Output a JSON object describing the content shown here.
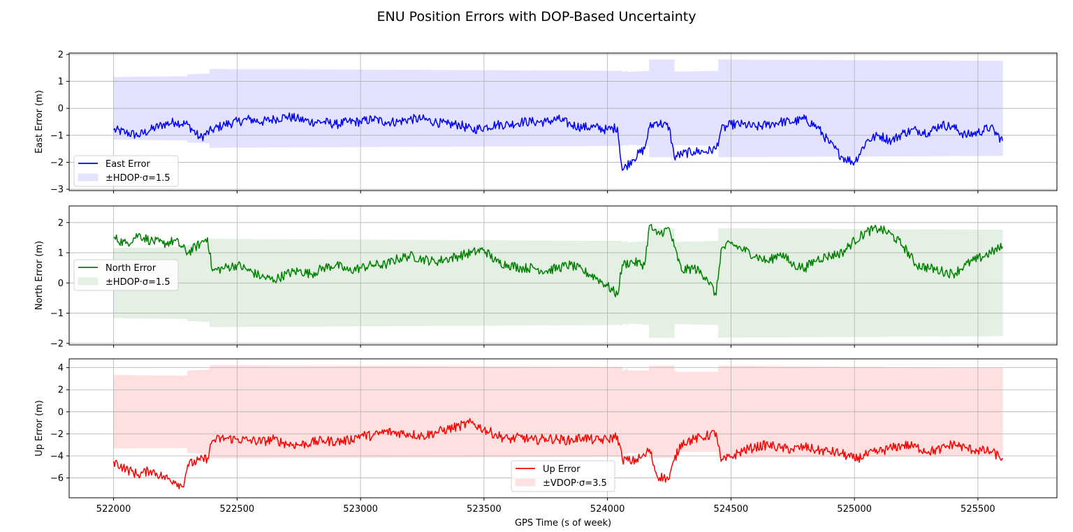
{
  "figure": {
    "title": "ENU Position Errors with DOP-Based Uncertainty",
    "xlabel": "GPS Time (s of week)"
  },
  "chart_data": [
    {
      "type": "line",
      "id": "east",
      "ylabel": "East Error (m)",
      "xlim": [
        521820,
        525820
      ],
      "ylim": [
        -3.05,
        2.05
      ],
      "xticks": [
        522000,
        522500,
        523000,
        523500,
        524000,
        524500,
        525000,
        525500
      ],
      "yticks": [
        -3,
        -2,
        -1,
        0,
        1,
        2
      ],
      "ytick_labels": [
        "−3",
        "−2",
        "−1",
        "0",
        "1",
        "2"
      ],
      "grid": true,
      "legend_position": "lower-left",
      "line_color": "#0000ff",
      "band_color": "#e3e3ff",
      "series": [
        {
          "name": "East Error",
          "x": [
            522000,
            522050,
            522100,
            522150,
            522200,
            522250,
            522300,
            522350,
            522400,
            522450,
            522500,
            522550,
            522600,
            522650,
            522700,
            522750,
            522800,
            522850,
            522900,
            522950,
            523000,
            523050,
            523100,
            523150,
            523200,
            523250,
            523300,
            523350,
            523400,
            523450,
            523500,
            523550,
            523600,
            523650,
            523700,
            523750,
            523800,
            523850,
            523900,
            523950,
            524000,
            524040,
            524060,
            524100,
            524150,
            524170,
            524200,
            524250,
            524270,
            524300,
            524350,
            524400,
            524440,
            524460,
            524500,
            524550,
            524600,
            524650,
            524700,
            524750,
            524800,
            524850,
            524900,
            524950,
            525000,
            525050,
            525100,
            525150,
            525200,
            525250,
            525300,
            525350,
            525400,
            525450,
            525500,
            525550,
            525600
          ],
          "y": [
            -0.8,
            -0.9,
            -1.0,
            -0.8,
            -0.6,
            -0.5,
            -0.6,
            -1.1,
            -0.8,
            -0.6,
            -0.5,
            -0.4,
            -0.5,
            -0.4,
            -0.3,
            -0.4,
            -0.5,
            -0.5,
            -0.6,
            -0.5,
            -0.5,
            -0.4,
            -0.5,
            -0.5,
            -0.4,
            -0.4,
            -0.5,
            -0.6,
            -0.6,
            -0.8,
            -0.7,
            -0.6,
            -0.6,
            -0.5,
            -0.5,
            -0.5,
            -0.4,
            -0.6,
            -0.7,
            -0.7,
            -0.8,
            -0.7,
            -2.3,
            -1.9,
            -1.5,
            -0.7,
            -0.5,
            -0.7,
            -1.8,
            -1.7,
            -1.6,
            -1.6,
            -1.5,
            -0.8,
            -0.6,
            -0.6,
            -0.7,
            -0.6,
            -0.5,
            -0.5,
            -0.4,
            -0.7,
            -1.3,
            -1.8,
            -2.0,
            -1.2,
            -1.0,
            -1.2,
            -0.9,
            -0.8,
            -0.9,
            -0.6,
            -0.7,
            -1.0,
            -0.9,
            -0.7,
            -1.2
          ]
        }
      ],
      "band": {
        "name": "±HDOP·σ=1.5",
        "x": [
          522000,
          522300,
          522300,
          522390,
          522390,
          524060,
          524060,
          524080,
          524080,
          524170,
          524170,
          524270,
          524270,
          524450,
          524450,
          525600
        ],
        "upper": [
          1.15,
          1.18,
          1.25,
          1.28,
          1.45,
          1.38,
          1.33,
          1.38,
          1.33,
          1.38,
          1.8,
          1.8,
          1.35,
          1.38,
          1.8,
          1.75
        ],
        "lower": [
          -1.15,
          -1.18,
          -1.25,
          -1.28,
          -1.45,
          -1.38,
          -1.33,
          -1.38,
          -1.33,
          -1.38,
          -1.8,
          -1.8,
          -1.35,
          -1.38,
          -1.8,
          -1.75
        ]
      }
    },
    {
      "type": "line",
      "id": "north",
      "ylabel": "North Error (m)",
      "xlim": [
        521820,
        525820
      ],
      "ylim": [
        -2.05,
        2.55
      ],
      "xticks": [
        522000,
        522500,
        523000,
        523500,
        524000,
        524500,
        525000,
        525500
      ],
      "yticks": [
        -2,
        -1,
        0,
        1,
        2
      ],
      "ytick_labels": [
        "−2",
        "−1",
        "0",
        "1",
        "2"
      ],
      "grid": true,
      "legend_position": "upper-left",
      "line_color": "#008000",
      "band_color": "#e3f0e3",
      "series": [
        {
          "name": "North Error",
          "x": [
            522000,
            522050,
            522100,
            522150,
            522200,
            522250,
            522300,
            522350,
            522380,
            522400,
            522450,
            522500,
            522550,
            522600,
            522650,
            522700,
            522750,
            522800,
            522850,
            522900,
            522950,
            523000,
            523050,
            523100,
            523150,
            523200,
            523250,
            523300,
            523350,
            523400,
            523450,
            523500,
            523550,
            523600,
            523650,
            523700,
            523750,
            523800,
            523850,
            523900,
            523950,
            524000,
            524040,
            524060,
            524100,
            524150,
            524170,
            524200,
            524250,
            524270,
            524300,
            524350,
            524400,
            524440,
            524460,
            524500,
            524550,
            524600,
            524650,
            524700,
            524750,
            524800,
            524850,
            524900,
            524950,
            525000,
            525050,
            525100,
            525150,
            525200,
            525250,
            525300,
            525350,
            525400,
            525450,
            525500,
            525550,
            525600
          ],
          "y": [
            1.5,
            1.3,
            1.6,
            1.4,
            1.3,
            1.4,
            1.0,
            1.3,
            1.5,
            0.4,
            0.5,
            0.6,
            0.4,
            0.2,
            0.1,
            0.3,
            0.4,
            0.3,
            0.5,
            0.6,
            0.4,
            0.5,
            0.6,
            0.6,
            0.8,
            0.9,
            0.8,
            0.7,
            0.8,
            0.9,
            1.0,
            1.1,
            0.7,
            0.6,
            0.5,
            0.5,
            0.4,
            0.5,
            0.6,
            0.4,
            0.2,
            -0.1,
            -0.4,
            0.6,
            0.7,
            0.6,
            1.9,
            1.6,
            1.8,
            1.2,
            0.4,
            0.5,
            0.2,
            -0.4,
            1.1,
            1.3,
            1.1,
            0.9,
            0.7,
            1.0,
            0.6,
            0.5,
            0.8,
            0.9,
            1.0,
            1.4,
            1.7,
            1.8,
            1.6,
            1.2,
            0.6,
            0.5,
            0.4,
            0.3,
            0.6,
            0.8,
            1.0,
            1.2
          ]
        }
      ],
      "band": {
        "name": "±HDOP·σ=1.5",
        "x": [
          522000,
          522300,
          522300,
          522390,
          522390,
          524060,
          524060,
          524080,
          524080,
          524170,
          524170,
          524270,
          524270,
          524450,
          524450,
          525600
        ],
        "upper": [
          1.15,
          1.18,
          1.25,
          1.28,
          1.45,
          1.38,
          1.33,
          1.38,
          1.33,
          1.38,
          1.8,
          1.8,
          1.35,
          1.38,
          1.8,
          1.75
        ],
        "lower": [
          -1.15,
          -1.18,
          -1.25,
          -1.28,
          -1.45,
          -1.38,
          -1.33,
          -1.38,
          -1.33,
          -1.38,
          -1.8,
          -1.8,
          -1.35,
          -1.38,
          -1.8,
          -1.75
        ]
      }
    },
    {
      "type": "line",
      "id": "up",
      "ylabel": "Up Error (m)",
      "xlim": [
        521820,
        525820
      ],
      "ylim": [
        -7.8,
        4.8
      ],
      "xticks": [
        522000,
        522500,
        523000,
        523500,
        524000,
        524500,
        525000,
        525500
      ],
      "xtick_labels": [
        "522000",
        "522500",
        "523000",
        "523500",
        "524000",
        "524500",
        "525000",
        "525500"
      ],
      "yticks": [
        -6,
        -4,
        -2,
        0,
        2,
        4
      ],
      "ytick_labels": [
        "−6",
        "−4",
        "−2",
        "0",
        "2",
        "4"
      ],
      "grid": true,
      "legend_position": "lower-center",
      "line_color": "#ff0000",
      "band_color": "#ffe0e0",
      "series": [
        {
          "name": "Up Error",
          "x": [
            522000,
            522050,
            522100,
            522150,
            522200,
            522250,
            522280,
            522300,
            522350,
            522380,
            522400,
            522450,
            522500,
            522550,
            522600,
            522650,
            522700,
            522750,
            522800,
            522850,
            522900,
            522950,
            523000,
            523050,
            523100,
            523150,
            523200,
            523250,
            523300,
            523350,
            523400,
            523450,
            523500,
            523550,
            523600,
            523650,
            523700,
            523750,
            523800,
            523850,
            523900,
            523950,
            524000,
            524040,
            524060,
            524100,
            524150,
            524170,
            524200,
            524250,
            524270,
            524300,
            524350,
            524400,
            524440,
            524460,
            524500,
            524550,
            524600,
            524650,
            524700,
            524750,
            524800,
            524850,
            524900,
            524950,
            525000,
            525050,
            525100,
            525150,
            525200,
            525250,
            525300,
            525350,
            525400,
            525450,
            525500,
            525550,
            525600
          ],
          "y": [
            -4.5,
            -5.2,
            -5.7,
            -5.3,
            -5.9,
            -6.3,
            -6.8,
            -4.8,
            -4.4,
            -4.2,
            -2.6,
            -2.4,
            -2.5,
            -2.6,
            -2.7,
            -2.5,
            -2.9,
            -3.0,
            -2.8,
            -2.6,
            -2.7,
            -2.6,
            -2.1,
            -2.2,
            -1.8,
            -1.9,
            -2.0,
            -2.2,
            -1.9,
            -1.6,
            -1.3,
            -1.0,
            -1.6,
            -2.1,
            -2.5,
            -2.3,
            -2.6,
            -2.4,
            -2.5,
            -2.6,
            -2.3,
            -2.6,
            -2.5,
            -2.2,
            -4.3,
            -4.5,
            -4.0,
            -3.4,
            -5.8,
            -6.1,
            -4.4,
            -2.8,
            -2.5,
            -2.2,
            -1.9,
            -4.5,
            -4.1,
            -3.5,
            -3.2,
            -3.0,
            -3.3,
            -3.4,
            -3.2,
            -3.5,
            -3.6,
            -3.8,
            -4.3,
            -3.9,
            -3.6,
            -3.3,
            -3.0,
            -3.2,
            -3.6,
            -3.4,
            -2.9,
            -3.3,
            -3.5,
            -3.6,
            -4.2
          ]
        }
      ],
      "band": {
        "name": "±VDOP·σ=3.5",
        "x": [
          522000,
          522300,
          522300,
          522390,
          522390,
          524060,
          524060,
          524080,
          524080,
          524170,
          524170,
          524270,
          524270,
          524450,
          524450,
          525600
        ],
        "upper": [
          3.3,
          3.25,
          3.7,
          3.8,
          4.2,
          4.05,
          3.65,
          3.9,
          3.7,
          3.7,
          4.15,
          4.15,
          3.6,
          3.6,
          4.15,
          3.95
        ],
        "lower": [
          -3.3,
          -3.25,
          -3.7,
          -3.8,
          -4.2,
          -4.05,
          -3.65,
          -3.9,
          -3.7,
          -3.7,
          -4.15,
          -4.15,
          -3.6,
          -3.6,
          -4.15,
          -3.95
        ]
      }
    }
  ]
}
